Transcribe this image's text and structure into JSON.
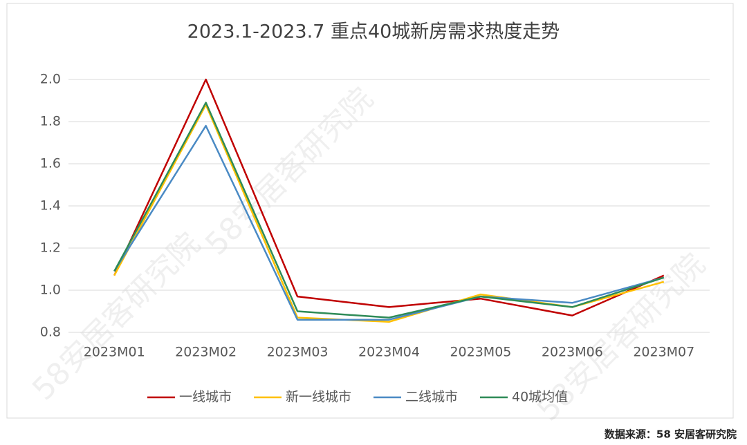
{
  "chart_data": {
    "type": "line",
    "title": "2023.1-2023.7 重点40城新房需求热度走势",
    "categories": [
      "2023M01",
      "2023M02",
      "2023M03",
      "2023M04",
      "2023M05",
      "2023M06",
      "2023M07"
    ],
    "series": [
      {
        "name": "一线城市",
        "color": "#c00000",
        "values": [
          1.07,
          2.0,
          0.97,
          0.92,
          0.96,
          0.88,
          1.07
        ]
      },
      {
        "name": "新一线城市",
        "color": "#ffc000",
        "values": [
          1.07,
          1.88,
          0.87,
          0.85,
          0.98,
          0.92,
          1.04
        ]
      },
      {
        "name": "二线城市",
        "color": "#4a8ac4",
        "values": [
          1.09,
          1.78,
          0.86,
          0.86,
          0.97,
          0.94,
          1.06
        ]
      },
      {
        "name": "40城均值",
        "color": "#2e8b57",
        "values": [
          1.09,
          1.89,
          0.9,
          0.87,
          0.97,
          0.92,
          1.06
        ]
      }
    ],
    "ylim": [
      0.8,
      2.0
    ],
    "yticks": [
      0.8,
      {
        "value": 1.0,
        "label": "1.0"
      },
      1.2,
      1.4,
      1.6,
      1.8,
      {
        "value": 2.0,
        "label": "2.0"
      }
    ],
    "grid": true,
    "legend": "bottom",
    "source": "数据来源：58 安居客研究院",
    "watermark": "58安居客研究院"
  }
}
